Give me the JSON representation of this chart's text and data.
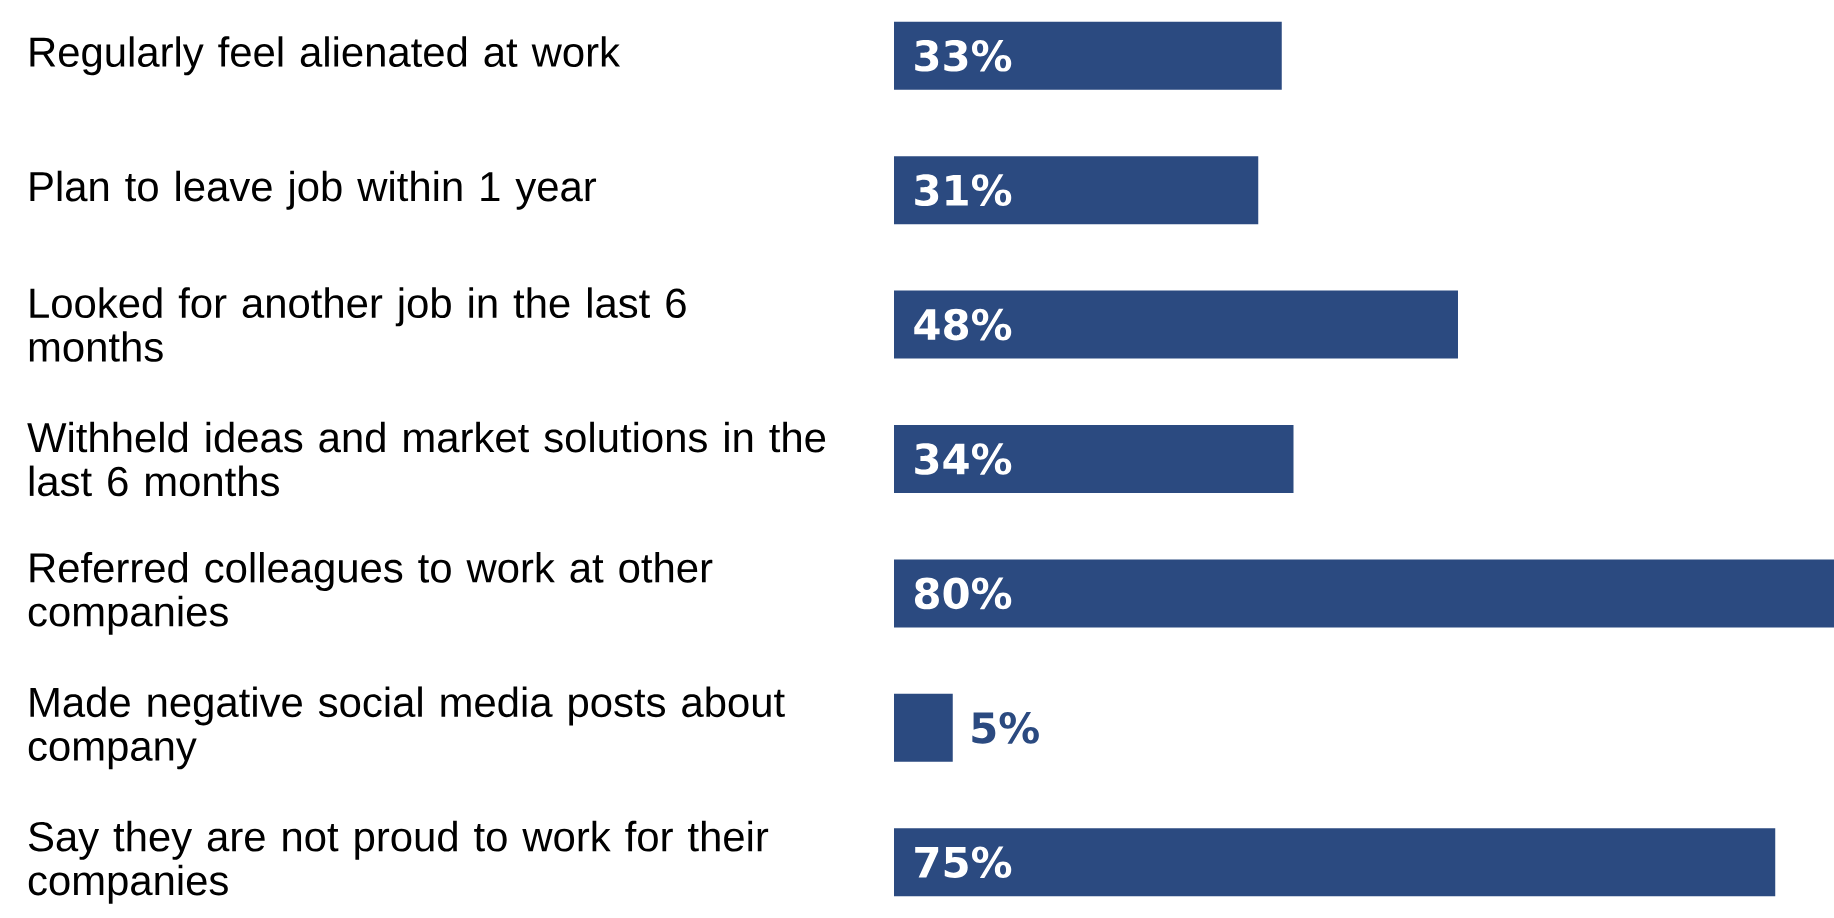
{
  "chart_data": {
    "type": "bar",
    "orientation": "horizontal",
    "categories": [
      "Regularly feel alienated at work",
      "Plan to leave job within 1 year",
      "Looked for another job in the last 6 months",
      "Withheld ideas and market solutions in the last 6 months",
      "Referred colleagues to work at other companies",
      "Made negative social media posts about company",
      "Say they are not proud to work for their companies"
    ],
    "values": [
      33,
      31,
      48,
      34,
      80,
      5,
      75
    ],
    "value_labels": [
      "33%",
      "31%",
      "48%",
      "34%",
      "80%",
      "5%",
      "75%"
    ],
    "color": "#2b4a80",
    "xlim": [
      0,
      80
    ]
  }
}
